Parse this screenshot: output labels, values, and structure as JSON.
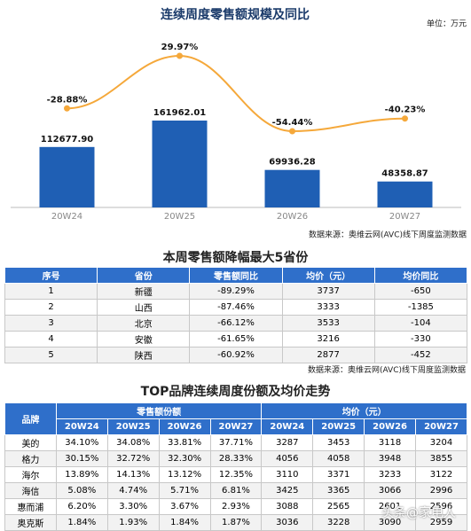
{
  "chart_data": {
    "type": "bar",
    "title": "连续周度零售额规模及同比",
    "unit": "单位：万元",
    "source": "数据来源：奥维云网(AVC)线下周度监测数据",
    "categories": [
      "20W24",
      "20W25",
      "20W26",
      "20W27"
    ],
    "series": [
      {
        "type": "bar",
        "color": "#1f5fb4",
        "values": [
          112677.9,
          161962.01,
          69936.28,
          48358.87
        ],
        "value_labels": [
          "112677.90",
          "161962.01",
          "69936.28",
          "48358.87"
        ]
      },
      {
        "type": "line",
        "color": "#f5a83a",
        "axis": "y2",
        "values": [
          -28.88,
          29.97,
          -54.44,
          -40.23
        ],
        "value_labels": [
          "-28.88%",
          "29.97%",
          "-54.44%",
          "-40.23%"
        ]
      }
    ]
  },
  "province_table": {
    "title": "本周零售额降幅最大5省份",
    "source": "数据来源：奥维云网(AVC)线下周度监测数据",
    "headers": [
      "序号",
      "省份",
      "零售额同比",
      "均价（元）",
      "均价同比"
    ],
    "rows": [
      [
        "1",
        "新疆",
        "-89.29%",
        "3737",
        "-650"
      ],
      [
        "2",
        "山西",
        "-87.46%",
        "3333",
        "-1385"
      ],
      [
        "3",
        "北京",
        "-66.12%",
        "3533",
        "-104"
      ],
      [
        "4",
        "安徽",
        "-61.65%",
        "3216",
        "-330"
      ],
      [
        "5",
        "陕西",
        "-60.92%",
        "2877",
        "-452"
      ]
    ]
  },
  "brand_table": {
    "title": "TOP品牌连续周度份额及均价走势",
    "brand_header": "品牌",
    "groups": [
      "零售额份额",
      "均价（元）"
    ],
    "weeks": [
      "20W24",
      "20W25",
      "20W26",
      "20W27",
      "20W24",
      "20W25",
      "20W26",
      "20W27"
    ],
    "rows": [
      [
        "美的",
        "34.10%",
        "34.08%",
        "33.81%",
        "37.71%",
        "3287",
        "3453",
        "3118",
        "3204"
      ],
      [
        "格力",
        "30.15%",
        "32.72%",
        "32.30%",
        "28.33%",
        "4056",
        "4058",
        "3948",
        "3855"
      ],
      [
        "海尔",
        "13.89%",
        "14.13%",
        "13.12%",
        "12.35%",
        "3110",
        "3371",
        "3233",
        "3122"
      ],
      [
        "海信",
        "5.08%",
        "4.74%",
        "5.71%",
        "6.81%",
        "3425",
        "3365",
        "3066",
        "2996"
      ],
      [
        "惠而浦",
        "6.20%",
        "3.30%",
        "3.67%",
        "2.93%",
        "3088",
        "2565",
        "2601",
        "2596"
      ],
      [
        "奥克斯",
        "1.84%",
        "1.93%",
        "1.84%",
        "1.87%",
        "3036",
        "3228",
        "3090",
        "2959"
      ]
    ],
    "watermark": "头条@家电人"
  }
}
